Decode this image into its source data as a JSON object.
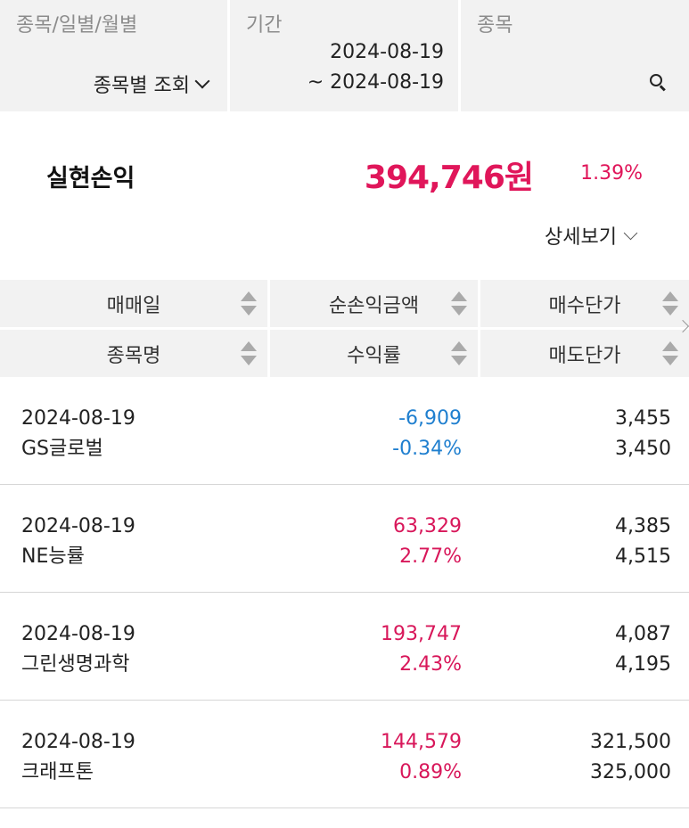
{
  "filters": {
    "type": {
      "label": "종목/일별/월별",
      "selected": "종목별 조회"
    },
    "period": {
      "label": "기간",
      "start": "2024-08-19",
      "end": "~ 2024-08-19"
    },
    "stock": {
      "label": "종목"
    }
  },
  "summary": {
    "label": "실현손익",
    "amount": "394,746원",
    "rate": "1.39%",
    "detail_label": "상세보기"
  },
  "table": {
    "headers": {
      "row1": [
        "매매일",
        "순손익금액",
        "매수단가"
      ],
      "row2": [
        "종목명",
        "수익률",
        "매도단가"
      ]
    },
    "rows": [
      {
        "date": "2024-08-19",
        "name": "GS글로벌",
        "profit": "-6,909",
        "rate": "-0.34%",
        "buy": "3,455",
        "sell": "3,450",
        "sign": "neg"
      },
      {
        "date": "2024-08-19",
        "name": "NE능률",
        "profit": "63,329",
        "rate": "2.77%",
        "buy": "4,385",
        "sell": "4,515",
        "sign": "pos"
      },
      {
        "date": "2024-08-19",
        "name": "그린생명과학",
        "profit": "193,747",
        "rate": "2.43%",
        "buy": "4,087",
        "sell": "4,195",
        "sign": "pos"
      },
      {
        "date": "2024-08-19",
        "name": "크래프톤",
        "profit": "144,579",
        "rate": "0.89%",
        "buy": "321,500",
        "sell": "325,000",
        "sign": "pos"
      }
    ]
  },
  "colors": {
    "positive": "#d8175a",
    "negative": "#1f7fcf",
    "accent": "#e0165a"
  },
  "icons": [
    "chevron-down-icon",
    "search-icon",
    "sort-icon",
    "chevron-right-icon"
  ]
}
